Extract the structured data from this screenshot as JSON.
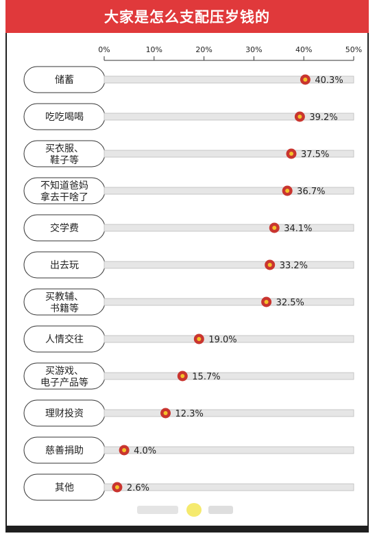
{
  "title": "大家是怎么支配压岁钱的",
  "colors": {
    "accent": "#e0393b",
    "dot_ring": "#c9352f",
    "dot_center": "#f4c12a",
    "bar": "#e6e6e6"
  },
  "chart_data": {
    "type": "dot",
    "title": "大家是怎么支配压岁钱的",
    "xlim": [
      0,
      50
    ],
    "xticks": [
      "0%",
      "10%",
      "20%",
      "30%",
      "40%",
      "50%"
    ],
    "tick_values": [
      0,
      10,
      20,
      30,
      40,
      50
    ],
    "categories": [
      [
        "储蓄"
      ],
      [
        "吃吃喝喝"
      ],
      [
        "买衣服、",
        "鞋子等"
      ],
      [
        "不知道爸妈",
        "拿去干啥了"
      ],
      [
        "交学费"
      ],
      [
        "出去玩"
      ],
      [
        "买教辅、",
        "书籍等"
      ],
      [
        "人情交往"
      ],
      [
        "买游戏、",
        "电子产品等"
      ],
      [
        "理财投资"
      ],
      [
        "慈善捐助"
      ],
      [
        "其他"
      ]
    ],
    "values": [
      40.3,
      39.2,
      37.5,
      36.7,
      34.1,
      33.2,
      32.5,
      19.0,
      15.7,
      12.3,
      4.0,
      2.6
    ],
    "value_labels": [
      "40.3%",
      "39.2%",
      "37.5%",
      "36.7%",
      "34.1%",
      "33.2%",
      "32.5%",
      "19.0%",
      "15.7%",
      "12.3%",
      "4.0%",
      "2.6%"
    ],
    "grid": false
  }
}
